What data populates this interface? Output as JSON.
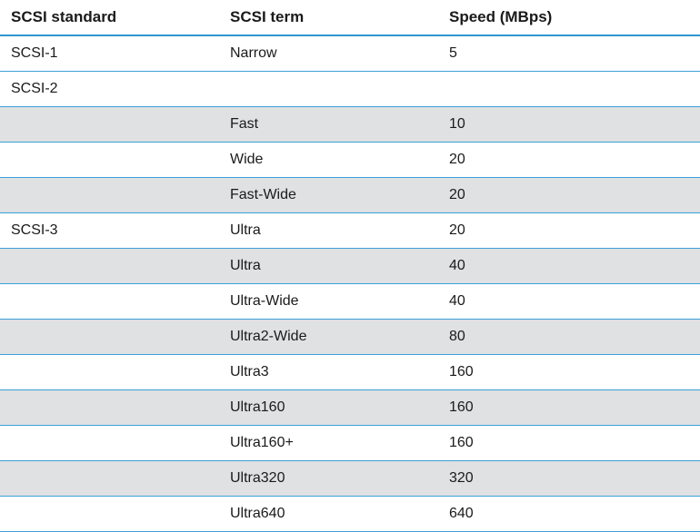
{
  "table": {
    "headers": [
      "SCSI standard",
      "SCSI term",
      "Speed (MBps)"
    ],
    "rows": [
      {
        "standard": "SCSI-1",
        "term": "Narrow",
        "speed": "5",
        "shaded": false
      },
      {
        "standard": "SCSI-2",
        "term": "",
        "speed": "",
        "shaded": false
      },
      {
        "standard": "",
        "term": "Fast",
        "speed": "10",
        "shaded": true
      },
      {
        "standard": "",
        "term": "Wide",
        "speed": "20",
        "shaded": false
      },
      {
        "standard": "",
        "term": "Fast-Wide",
        "speed": "20",
        "shaded": true
      },
      {
        "standard": "SCSI-3",
        "term": "Ultra",
        "speed": "20",
        "shaded": false
      },
      {
        "standard": "",
        "term": "Ultra",
        "speed": "40",
        "shaded": true
      },
      {
        "standard": "",
        "term": "Ultra-Wide",
        "speed": "40",
        "shaded": false
      },
      {
        "standard": "",
        "term": "Ultra2-Wide",
        "speed": "80",
        "shaded": true
      },
      {
        "standard": "",
        "term": "Ultra3",
        "speed": "160",
        "shaded": false
      },
      {
        "standard": "",
        "term": "Ultra160",
        "speed": "160",
        "shaded": true
      },
      {
        "standard": "",
        "term": "Ultra160+",
        "speed": "160",
        "shaded": false
      },
      {
        "standard": "",
        "term": "Ultra320",
        "speed": "320",
        "shaded": true
      },
      {
        "standard": "",
        "term": "Ultra640",
        "speed": "640",
        "shaded": false
      }
    ]
  },
  "colors": {
    "rule": "#3aa0d8",
    "shade": "#dfe1e3",
    "text": "#1a1a1a"
  }
}
